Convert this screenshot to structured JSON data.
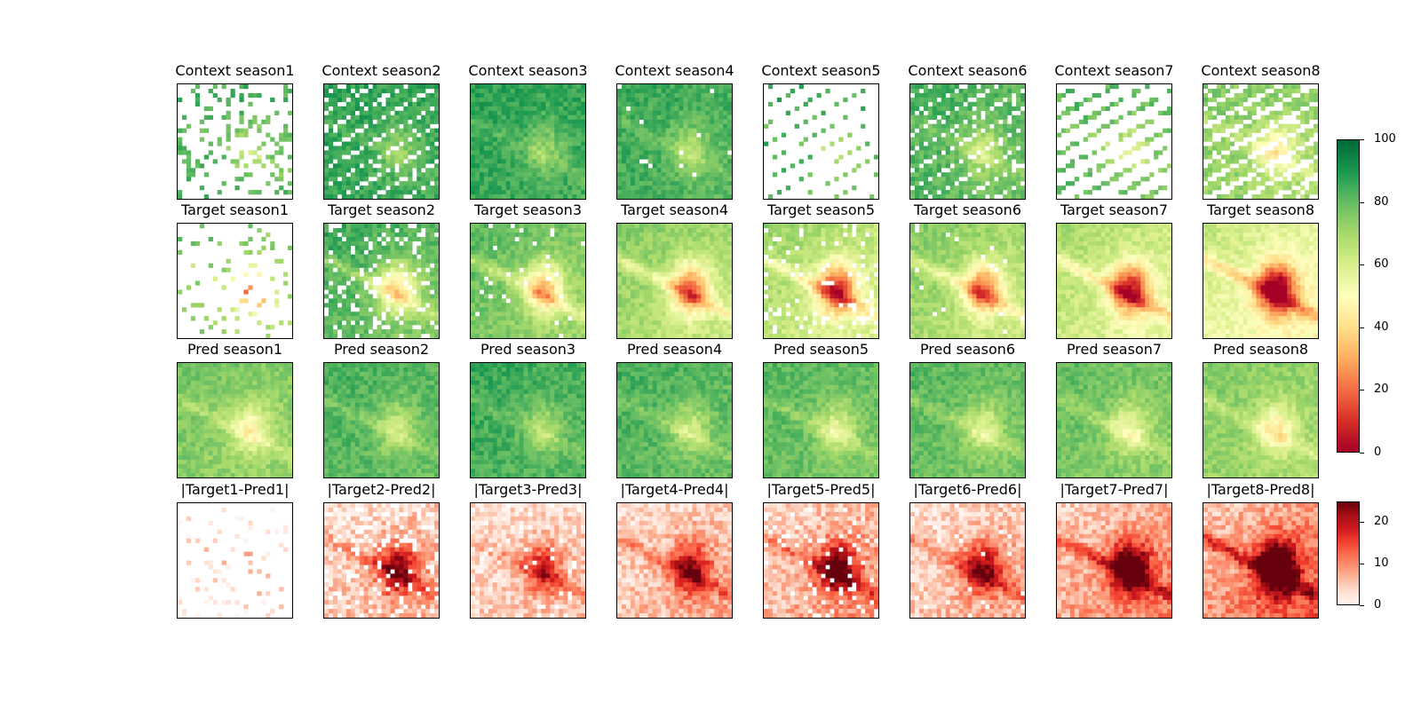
{
  "chart_data": {
    "type": "heatmap",
    "rows": [
      {
        "key": "context",
        "titles": [
          "Context season1",
          "Context season2",
          "Context season3",
          "Context season4",
          "Context season5",
          "Context season6",
          "Context season7",
          "Context season8"
        ]
      },
      {
        "key": "target",
        "titles": [
          "Target season1",
          "Target season2",
          "Target season3",
          "Target season4",
          "Target season5",
          "Target season6",
          "Target season7",
          "Target season8"
        ]
      },
      {
        "key": "pred",
        "titles": [
          "Pred season1",
          "Pred season2",
          "Pred season3",
          "Pred season4",
          "Pred season5",
          "Pred season6",
          "Pred season7",
          "Pred season8"
        ]
      },
      {
        "key": "error",
        "titles": [
          "|Target1-Pred1|",
          "|Target2-Pred2|",
          "|Target3-Pred3|",
          "|Target4-Pred4|",
          "|Target5-Pred5|",
          "|Target6-Pred6|",
          "|Target7-Pred7|",
          "|Target8-Pred8|"
        ]
      }
    ],
    "colorbars": [
      {
        "name": "value",
        "colormap": "RdYlGn",
        "range": [
          0,
          100
        ],
        "ticks": [
          "0",
          "20",
          "40",
          "60",
          "80",
          "100"
        ]
      },
      {
        "name": "abs-error",
        "colormap": "Reds",
        "range": [
          0,
          25
        ],
        "ticks": [
          "0",
          "10",
          "20"
        ]
      }
    ],
    "missing_fraction": {
      "context": [
        0.78,
        0.15,
        0.0,
        0.02,
        0.88,
        0.15,
        0.72,
        0.3
      ],
      "target": [
        0.9,
        0.18,
        0.05,
        0.0,
        0.1,
        0.03,
        0.0,
        0.0
      ],
      "pred": [
        0,
        0,
        0,
        0,
        0,
        0,
        0,
        0
      ],
      "error": [
        0.9,
        0.18,
        0.05,
        0.0,
        0.1,
        0.03,
        0.0,
        0.0
      ]
    },
    "mean_value": {
      "context": [
        85,
        88,
        88,
        86,
        85,
        84,
        82,
        76
      ],
      "target": [
        80,
        86,
        82,
        76,
        72,
        76,
        70,
        64
      ],
      "pred": [
        78,
        84,
        86,
        84,
        82,
        82,
        80,
        76
      ],
      "error": [
        3,
        9,
        7,
        9,
        11,
        9,
        13,
        16
      ]
    }
  }
}
